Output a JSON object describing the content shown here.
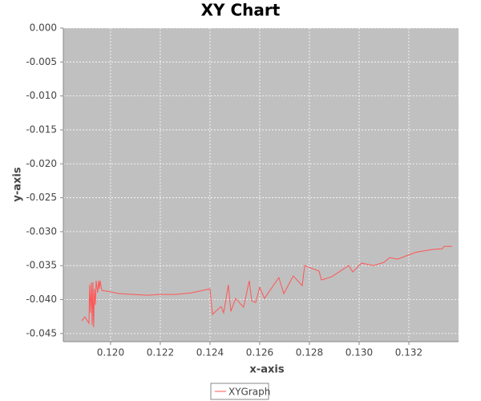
{
  "chart_data": {
    "type": "line",
    "title": "XY Chart",
    "x_label": "x-axis",
    "y_label": "y-axis",
    "xlim": [
      0.1181,
      0.134
    ],
    "ylim": [
      -0.0462,
      0
    ],
    "xticks": [
      {
        "value": 0.12,
        "label": "0.120"
      },
      {
        "value": 0.122,
        "label": "0.122"
      },
      {
        "value": 0.124,
        "label": "0.124"
      },
      {
        "value": 0.126,
        "label": "0.126"
      },
      {
        "value": 0.128,
        "label": "0.128"
      },
      {
        "value": 0.13,
        "label": "0.130"
      },
      {
        "value": 0.132,
        "label": "0.132"
      }
    ],
    "yticks": [
      {
        "value": 0,
        "label": "0.000"
      },
      {
        "value": -0.005,
        "label": "-0.005"
      },
      {
        "value": -0.01,
        "label": "-0.010"
      },
      {
        "value": -0.015,
        "label": "-0.015"
      },
      {
        "value": -0.02,
        "label": "-0.020"
      },
      {
        "value": -0.025,
        "label": "-0.025"
      },
      {
        "value": -0.03,
        "label": "-0.030"
      },
      {
        "value": -0.035,
        "label": "-0.035"
      },
      {
        "value": -0.04,
        "label": "-0.040"
      },
      {
        "value": -0.045,
        "label": "-0.045"
      }
    ],
    "grid": true,
    "legend": "bottom",
    "series": [
      {
        "name": "XYGraph",
        "color": "#ff5555",
        "x": [
          0.11884,
          0.11897,
          0.11913,
          0.11916,
          0.11919,
          0.11923,
          0.11926,
          0.11929,
          0.11932,
          0.11935,
          0.11939,
          0.11942,
          0.11948,
          0.11952,
          0.11955,
          0.11958,
          0.11965,
          0.11987,
          0.12035,
          0.12148,
          0.12197,
          0.12261,
          0.12326,
          0.124,
          0.1241,
          0.12423,
          0.12445,
          0.12455,
          0.12474,
          0.12484,
          0.12503,
          0.12535,
          0.12558,
          0.12568,
          0.12584,
          0.126,
          0.12619,
          0.12677,
          0.12697,
          0.12735,
          0.12771,
          0.12781,
          0.12839,
          0.12848,
          0.1289,
          0.12958,
          0.12974,
          0.1301,
          0.13058,
          0.131,
          0.13123,
          0.13155,
          0.13223,
          0.13235,
          0.13294,
          0.13335,
          0.13342,
          0.13374
        ],
        "values": [
          -0.04314,
          -0.04255,
          -0.0435,
          -0.03783,
          -0.04196,
          -0.03747,
          -0.04374,
          -0.03747,
          -0.04409,
          -0.03842,
          -0.04078,
          -0.03723,
          -0.03901,
          -0.03723,
          -0.03842,
          -0.03723,
          -0.03865,
          -0.03877,
          -0.03913,
          -0.03936,
          -0.03924,
          -0.03924,
          -0.03901,
          -0.03842,
          -0.0422,
          -0.04173,
          -0.04102,
          -0.04196,
          -0.03783,
          -0.04173,
          -0.03983,
          -0.04113,
          -0.03723,
          -0.04019,
          -0.04043,
          -0.03818,
          -0.03983,
          -0.03676,
          -0.03913,
          -0.03652,
          -0.03794,
          -0.03499,
          -0.03582,
          -0.03712,
          -0.03664,
          -0.03499,
          -0.03593,
          -0.03463,
          -0.03499,
          -0.03452,
          -0.03381,
          -0.03404,
          -0.0331,
          -0.03298,
          -0.03262,
          -0.03251,
          -0.03215,
          -0.03215
        ]
      }
    ]
  }
}
